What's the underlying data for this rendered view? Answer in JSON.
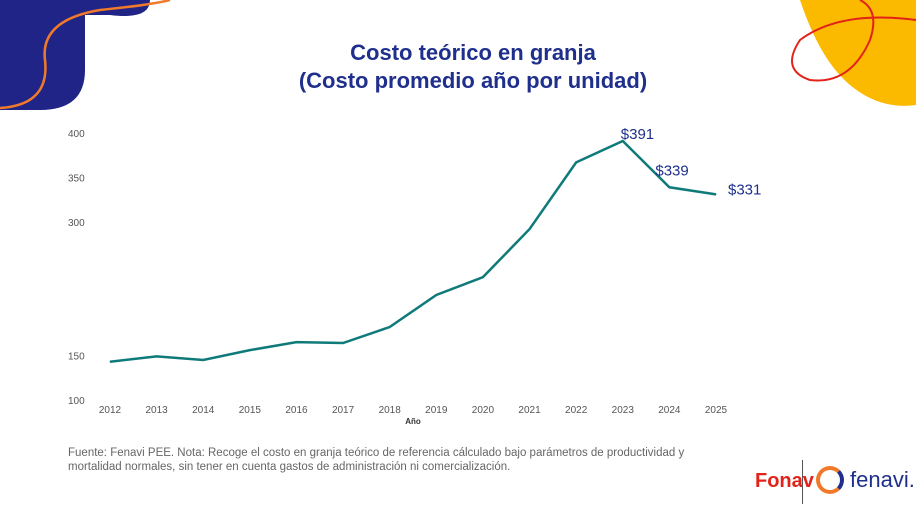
{
  "chart_data": {
    "type": "line",
    "title": "Costo teórico en granja",
    "subtitle": "(Costo promedio año por unidad)",
    "xlabel": "Año",
    "ylabel": "",
    "x": [
      "2012",
      "2013",
      "2014",
      "2015",
      "2016",
      "2017",
      "2018",
      "2019",
      "2020",
      "2021",
      "2022",
      "2023",
      "2024",
      "2025"
    ],
    "series": [
      {
        "name": "Costo",
        "values": [
          143,
          149,
          145,
          156,
          165,
          164,
          182,
          218,
          238,
          292,
          367,
          391,
          339,
          331
        ]
      }
    ],
    "yticks": [
      "100",
      "150",
      "300",
      "350",
      "400"
    ],
    "ylim": [
      100,
      400
    ],
    "annotations": [
      "$391",
      "$339",
      "$331"
    ],
    "grid": false,
    "line_color": "#0f7a7a"
  },
  "footnote": "Fuente: Fenavi PEE. Nota: Recoge el costo en granja teórico de referencia cálculado bajo parámetros de productividad y mortalidad normales, sin tener en cuenta gastos de administración ni comercialización.",
  "logos": {
    "fonav": "Fonav",
    "fenavi": "fenavi."
  }
}
